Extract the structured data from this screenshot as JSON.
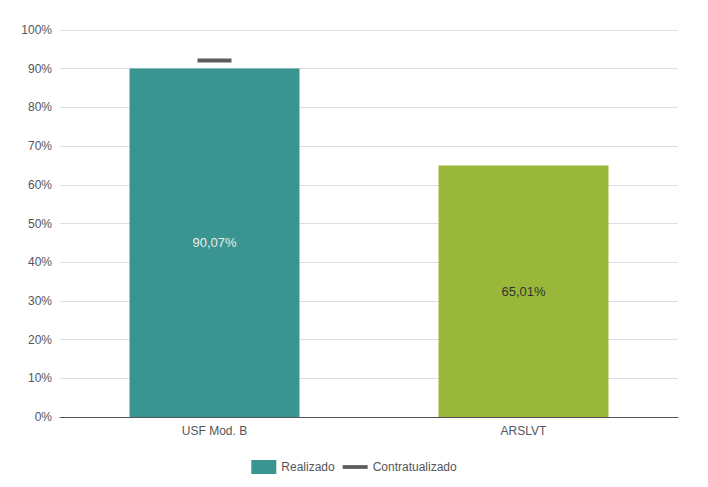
{
  "chart_data": {
    "type": "bar",
    "categories": [
      "USF Mod. B",
      "ARSLVT"
    ],
    "series": [
      {
        "name": "Realizado",
        "type": "bar",
        "color": "#3a9490",
        "colors": [
          "#3a9490",
          "#99b83a"
        ],
        "values": [
          0.9007,
          0.6501
        ],
        "value_labels": [
          "90,07%",
          "65,01%"
        ]
      },
      {
        "name": "Contratualizado",
        "type": "scatter",
        "marker": "dash",
        "color": "#333333",
        "values": [
          0.921,
          null
        ]
      }
    ],
    "ylim": [
      0,
      1.0
    ],
    "yticks": [
      {
        "value": 0.0,
        "label": "0%"
      },
      {
        "value": 0.1,
        "label": "10%"
      },
      {
        "value": 0.2,
        "label": "20%"
      },
      {
        "value": 0.3,
        "label": "30%"
      },
      {
        "value": 0.4,
        "label": "40%"
      },
      {
        "value": 0.5,
        "label": "50%"
      },
      {
        "value": 0.6,
        "label": "60%"
      },
      {
        "value": 0.7,
        "label": "70%"
      },
      {
        "value": 0.8,
        "label": "80%"
      },
      {
        "value": 0.9,
        "label": "90%"
      },
      {
        "value": 1.0,
        "label": "100%"
      }
    ],
    "grid": true,
    "legend": "bottom",
    "data_labels": true
  }
}
